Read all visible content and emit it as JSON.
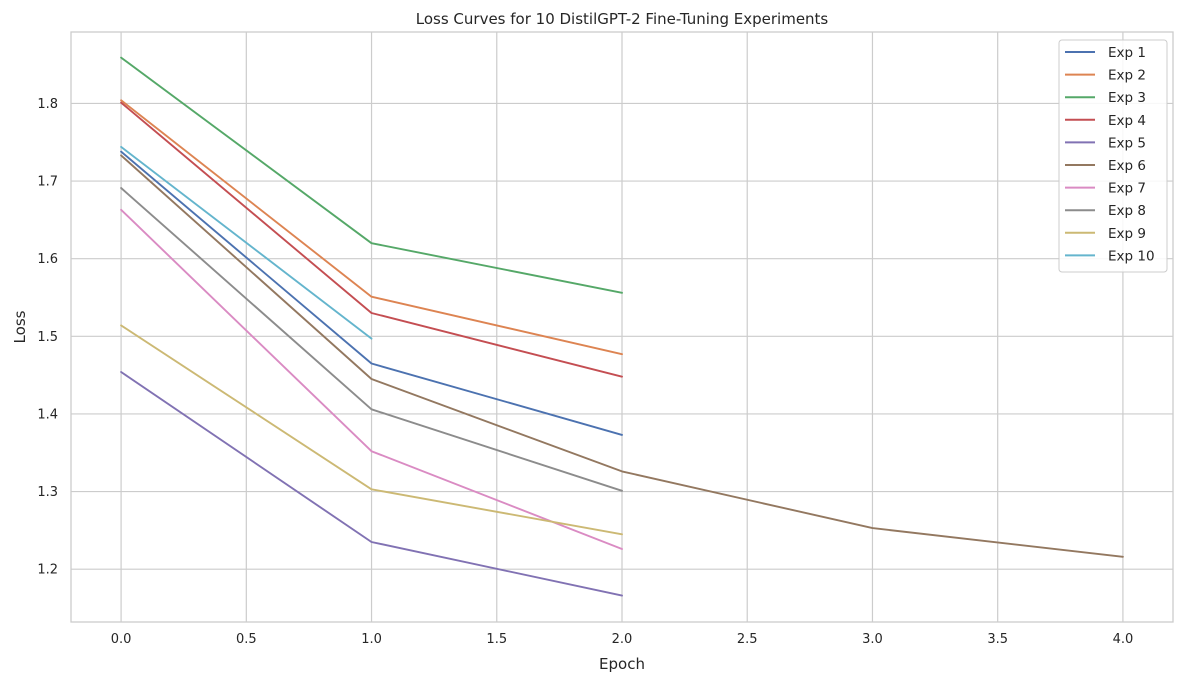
{
  "chart_data": {
    "type": "line",
    "title": "Loss Curves for 10 DistilGPT-2 Fine-Tuning Experiments",
    "xlabel": "Epoch",
    "ylabel": "Loss",
    "xlim": [
      -0.2,
      4.2
    ],
    "ylim": [
      1.132,
      1.892
    ],
    "xticks": [
      0.0,
      0.5,
      1.0,
      1.5,
      2.0,
      2.5,
      3.0,
      3.5,
      4.0
    ],
    "xtick_labels": [
      "0.0",
      "0.5",
      "1.0",
      "1.5",
      "2.0",
      "2.5",
      "3.0",
      "3.5",
      "4.0"
    ],
    "yticks": [
      1.2,
      1.3,
      1.4,
      1.5,
      1.6,
      1.7,
      1.8
    ],
    "ytick_labels": [
      "1.2",
      "1.3",
      "1.4",
      "1.5",
      "1.6",
      "1.7",
      "1.8"
    ],
    "grid": true,
    "legend_position": "top-right",
    "series": [
      {
        "name": "Exp 1",
        "color": "#4c72b0",
        "x": [
          0,
          1,
          2
        ],
        "values": [
          1.738,
          1.465,
          1.373
        ]
      },
      {
        "name": "Exp 2",
        "color": "#dd8452",
        "x": [
          0,
          1,
          2
        ],
        "values": [
          1.804,
          1.551,
          1.477
        ]
      },
      {
        "name": "Exp 3",
        "color": "#55a868",
        "x": [
          0,
          1,
          2
        ],
        "values": [
          1.859,
          1.62,
          1.556
        ]
      },
      {
        "name": "Exp 4",
        "color": "#c44e52",
        "x": [
          0,
          1,
          2
        ],
        "values": [
          1.801,
          1.53,
          1.448
        ]
      },
      {
        "name": "Exp 5",
        "color": "#8172b3",
        "x": [
          0,
          1,
          2
        ],
        "values": [
          1.454,
          1.235,
          1.166
        ]
      },
      {
        "name": "Exp 6",
        "color": "#937860",
        "x": [
          0,
          1,
          2,
          3,
          4
        ],
        "values": [
          1.733,
          1.445,
          1.326,
          1.253,
          1.216
        ]
      },
      {
        "name": "Exp 7",
        "color": "#da8bc3",
        "x": [
          0,
          1,
          2
        ],
        "values": [
          1.663,
          1.352,
          1.226
        ]
      },
      {
        "name": "Exp 8",
        "color": "#8c8c8c",
        "x": [
          0,
          1,
          2
        ],
        "values": [
          1.691,
          1.406,
          1.301
        ]
      },
      {
        "name": "Exp 9",
        "color": "#ccb974",
        "x": [
          0,
          1,
          2
        ],
        "values": [
          1.514,
          1.303,
          1.245
        ]
      },
      {
        "name": "Exp 10",
        "color": "#64b5cd",
        "x": [
          0,
          1
        ],
        "values": [
          1.744,
          1.497
        ]
      }
    ]
  }
}
